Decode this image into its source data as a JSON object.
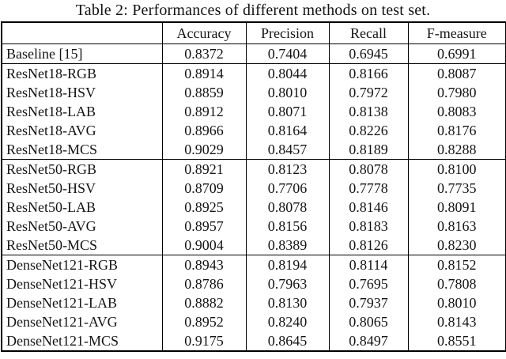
{
  "page": {
    "background": "#ffffff",
    "text_color": "#141414",
    "border_color": "#000000"
  },
  "title": "Table 2: Performances of different methods on test set.",
  "table": {
    "headers": [
      "",
      "Accuracy",
      "Precision",
      "Recall",
      "F-measure"
    ],
    "rows": [
      {
        "method": "Baseline [15]",
        "values": [
          "0.8372",
          "0.7404",
          "0.6945",
          "0.6991"
        ]
      },
      {
        "method": "ResNet18-RGB",
        "values": [
          "0.8914",
          "0.8044",
          "0.8166",
          "0.8087"
        ]
      },
      {
        "method": "ResNet18-HSV",
        "values": [
          "0.8859",
          "0.8010",
          "0.7972",
          "0.7980"
        ]
      },
      {
        "method": "ResNet18-LAB",
        "values": [
          "0.8912",
          "0.8071",
          "0.8138",
          "0.8083"
        ]
      },
      {
        "method": "ResNet18-AVG",
        "values": [
          "0.8966",
          "0.8164",
          "0.8226",
          "0.8176"
        ]
      },
      {
        "method": "ResNet18-MCS",
        "values": [
          "0.9029",
          "0.8457",
          "0.8189",
          "0.8288"
        ]
      },
      {
        "method": "ResNet50-RGB",
        "values": [
          "0.8921",
          "0.8123",
          "0.8078",
          "0.8100"
        ]
      },
      {
        "method": "ResNet50-HSV",
        "values": [
          "0.8709",
          "0.7706",
          "0.7778",
          "0.7735"
        ]
      },
      {
        "method": "ResNet50-LAB",
        "values": [
          "0.8925",
          "0.8078",
          "0.8146",
          "0.8091"
        ]
      },
      {
        "method": "ResNet50-AVG",
        "values": [
          "0.8957",
          "0.8156",
          "0.8183",
          "0.8163"
        ]
      },
      {
        "method": "ResNet50-MCS",
        "values": [
          "0.9004",
          "0.8389",
          "0.8126",
          "0.8230"
        ]
      },
      {
        "method": "DenseNet121-RGB",
        "values": [
          "0.8943",
          "0.8194",
          "0.8114",
          "0.8152"
        ]
      },
      {
        "method": "DenseNet121-HSV",
        "values": [
          "0.8786",
          "0.7963",
          "0.7695",
          "0.7808"
        ]
      },
      {
        "method": "DenseNet121-LAB",
        "values": [
          "0.8882",
          "0.8130",
          "0.7937",
          "0.8010"
        ]
      },
      {
        "method": "DenseNet121-AVG",
        "values": [
          "0.8952",
          "0.8240",
          "0.8065",
          "0.8143"
        ]
      },
      {
        "method": "DenseNet121-MCS",
        "values": [
          "0.9175",
          "0.8645",
          "0.8497",
          "0.8551"
        ]
      }
    ]
  }
}
